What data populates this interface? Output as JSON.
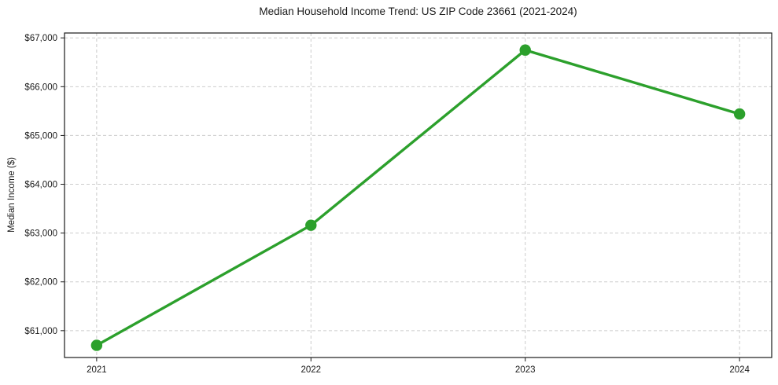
{
  "figure": {
    "background": "#ffffff"
  },
  "chart_data": {
    "type": "line",
    "title": "Median Household Income Trend: US ZIP Code 23661 (2021-2024)",
    "xlabel": "",
    "ylabel": "Median Income ($)",
    "x": [
      2021,
      2022,
      2023,
      2024
    ],
    "x_tick_labels": [
      "2021",
      "2022",
      "2023",
      "2024"
    ],
    "series": [
      {
        "values": [
          60700,
          63160,
          66750,
          65440
        ],
        "color": "#2ca02c",
        "marker": "circle",
        "line_width": 3.4,
        "marker_radius": 7.2
      }
    ],
    "y_ticks": [
      61000,
      62000,
      63000,
      64000,
      65000,
      66000,
      67000
    ],
    "y_tick_labels": [
      "$61,000",
      "$62,000",
      "$63,000",
      "$64,000",
      "$65,000",
      "$66,000",
      "$67,000"
    ],
    "xlim": [
      2020.85,
      2024.15
    ],
    "ylim": [
      60450,
      67100
    ],
    "grid": true,
    "grid_style": "dashed",
    "grid_color": "#cccccc",
    "axis_color": "#1a1a1a",
    "text_color": "#1a1a1a",
    "legend_position": "none"
  }
}
